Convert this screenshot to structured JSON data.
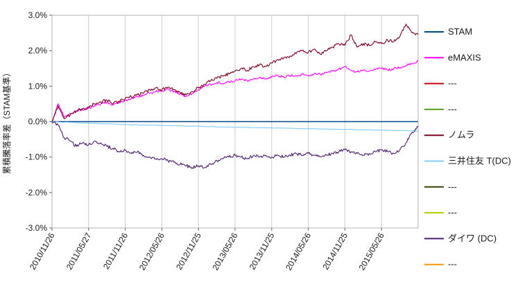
{
  "chart_data": {
    "type": "line",
    "title": "",
    "ylabel": "累積騰落率差（STAM基準）",
    "xlabel": "",
    "ylim": [
      -3,
      3
    ],
    "x_range": [
      0,
      60
    ],
    "x_unit": "months since 2010/11/26",
    "grid": "vertical",
    "legend_position": "right",
    "background": "#ffffff",
    "y_tick_values": [
      3,
      2,
      1,
      0,
      -1,
      -2,
      -3
    ],
    "y_tick_labels": [
      "3.0%",
      "2.0%",
      "1.0%",
      "0.0%",
      "-1.0%",
      "-2.0%",
      "-3.0%"
    ],
    "x_tick_positions": [
      0,
      6,
      12,
      18,
      24,
      30,
      36,
      42,
      48,
      54
    ],
    "x_tick_labels": [
      "2010/11/26",
      "2011/05/27",
      "2011/11/26",
      "2012/05/26",
      "2012/11/25",
      "2013/05/26",
      "2013/11/25",
      "2014/05/26",
      "2014/11/25",
      "2015/05/26"
    ],
    "series": [
      {
        "name": "STAM",
        "color": "#004586",
        "noise": 0,
        "values": [
          0,
          0,
          0,
          0,
          0,
          0,
          0,
          0,
          0,
          0,
          0,
          0,
          0,
          0,
          0,
          0,
          0,
          0,
          0,
          0,
          0,
          0,
          0,
          0,
          0,
          0,
          0,
          0,
          0,
          0,
          0,
          0,
          0,
          0,
          0,
          0,
          0,
          0,
          0,
          0,
          0,
          0,
          0,
          0,
          0,
          0,
          0,
          0,
          0,
          0,
          0,
          0,
          0,
          0,
          0,
          0,
          0,
          0,
          0,
          0,
          0
        ]
      },
      {
        "name": "eMAXIS",
        "color": "#ff00ff",
        "noise": 0.035,
        "values": [
          0.0,
          0.5,
          0.12,
          0.22,
          0.3,
          0.33,
          0.38,
          0.45,
          0.5,
          0.55,
          0.48,
          0.55,
          0.6,
          0.65,
          0.7,
          0.75,
          0.8,
          0.85,
          0.85,
          0.92,
          0.85,
          0.78,
          0.72,
          0.8,
          0.9,
          1.0,
          1.05,
          1.1,
          1.08,
          1.12,
          1.15,
          1.2,
          1.15,
          1.2,
          1.25,
          1.2,
          1.25,
          1.3,
          1.25,
          1.3,
          1.28,
          1.33,
          1.3,
          1.35,
          1.33,
          1.38,
          1.42,
          1.48,
          1.55,
          1.45,
          1.4,
          1.45,
          1.42,
          1.47,
          1.5,
          1.45,
          1.5,
          1.53,
          1.58,
          1.63,
          1.7
        ]
      },
      {
        "name": "---",
        "color": "#c5000b",
        "noise": 0,
        "values": null
      },
      {
        "name": "---",
        "color": "#579d1c",
        "noise": 0,
        "values": null
      },
      {
        "name": "ノムラ",
        "color": "#7e0021",
        "noise": 0.045,
        "values": [
          0.0,
          0.45,
          0.08,
          0.2,
          0.3,
          0.35,
          0.4,
          0.5,
          0.55,
          0.6,
          0.5,
          0.58,
          0.65,
          0.7,
          0.75,
          0.8,
          0.9,
          0.95,
          0.9,
          0.97,
          0.9,
          0.82,
          0.75,
          0.85,
          0.95,
          1.05,
          1.15,
          1.22,
          1.28,
          1.35,
          1.42,
          1.5,
          1.45,
          1.55,
          1.6,
          1.55,
          1.65,
          1.75,
          1.8,
          1.85,
          1.92,
          2.0,
          1.95,
          2.05,
          1.9,
          2.0,
          2.1,
          2.2,
          2.15,
          2.45,
          2.1,
          2.2,
          2.15,
          2.25,
          2.2,
          2.3,
          2.25,
          2.4,
          2.75,
          2.5,
          2.45
        ]
      },
      {
        "name": "三井住友 T(DC)",
        "color": "#83caff",
        "noise": 0.008,
        "values": [
          0.0,
          -0.01,
          -0.02,
          -0.02,
          -0.03,
          -0.04,
          -0.05,
          -0.05,
          -0.06,
          -0.06,
          -0.07,
          -0.08,
          -0.08,
          -0.09,
          -0.09,
          -0.1,
          -0.1,
          -0.1,
          -0.11,
          -0.11,
          -0.12,
          -0.12,
          -0.13,
          -0.13,
          -0.13,
          -0.14,
          -0.14,
          -0.15,
          -0.15,
          -0.15,
          -0.16,
          -0.16,
          -0.16,
          -0.17,
          -0.17,
          -0.17,
          -0.18,
          -0.18,
          -0.18,
          -0.19,
          -0.19,
          -0.2,
          -0.2,
          -0.2,
          -0.21,
          -0.21,
          -0.21,
          -0.22,
          -0.22,
          -0.22,
          -0.23,
          -0.23,
          -0.23,
          -0.24,
          -0.24,
          -0.24,
          -0.25,
          -0.25,
          -0.25,
          -0.26,
          -0.26
        ]
      },
      {
        "name": "---",
        "color": "#314004",
        "noise": 0,
        "values": null
      },
      {
        "name": "---",
        "color": "#aecf00",
        "noise": 0,
        "values": null
      },
      {
        "name": "ダイワ (DC)",
        "color": "#4b1f6f",
        "noise": 0.045,
        "values": [
          0.0,
          -0.1,
          -0.45,
          -0.55,
          -0.7,
          -0.6,
          -0.65,
          -0.55,
          -0.6,
          -0.7,
          -0.75,
          -0.85,
          -0.8,
          -0.9,
          -0.85,
          -0.95,
          -1.0,
          -1.05,
          -1.05,
          -1.1,
          -1.15,
          -1.2,
          -1.25,
          -1.3,
          -1.25,
          -1.3,
          -1.2,
          -1.1,
          -1.05,
          -1.0,
          -0.95,
          -1.0,
          -1.05,
          -0.95,
          -1.0,
          -0.95,
          -1.0,
          -0.95,
          -1.0,
          -0.95,
          -0.9,
          -0.95,
          -0.9,
          -0.95,
          -1.0,
          -0.95,
          -0.9,
          -0.85,
          -0.8,
          -0.85,
          -0.9,
          -0.95,
          -0.9,
          -0.85,
          -0.8,
          -0.85,
          -0.9,
          -0.8,
          -0.6,
          -0.3,
          -0.15
        ]
      },
      {
        "name": "---",
        "color": "#ff950e",
        "noise": 0,
        "values": null
      }
    ]
  }
}
